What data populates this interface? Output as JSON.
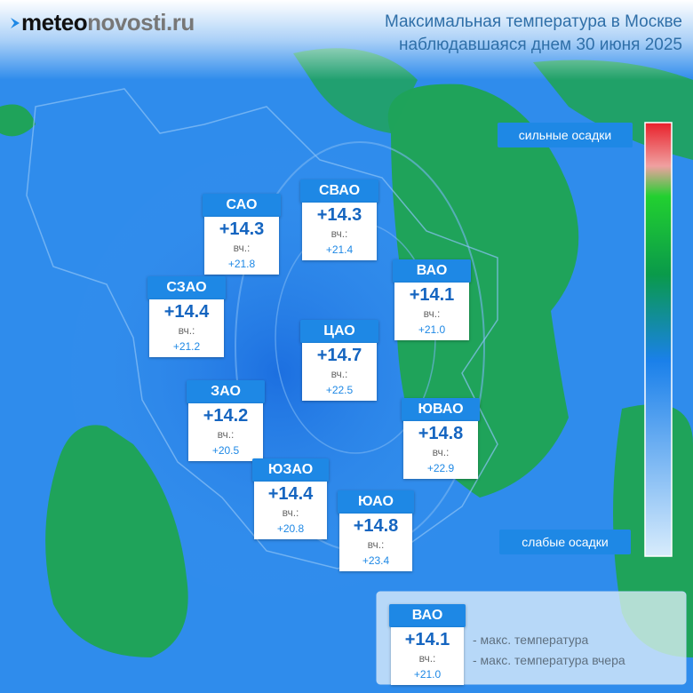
{
  "logo": {
    "bold": "meteo",
    "light": "novosti.ru"
  },
  "title": [
    "Максимальная температура в Москве",
    "наблюдавшаяся днем 30 июня 2025"
  ],
  "legend": {
    "high": "сильные осадки",
    "low": "слабые осадки"
  },
  "districts": [
    {
      "name": "САО",
      "temp": "+14.3",
      "prev_label": "вч.:",
      "prev": "+21.8"
    },
    {
      "name": "СВАО",
      "temp": "+14.3",
      "prev_label": "вч.:",
      "prev": "+21.4"
    },
    {
      "name": "СЗАО",
      "temp": "+14.4",
      "prev_label": "вч.:",
      "prev": "+21.2"
    },
    {
      "name": "ВАО",
      "temp": "+14.1",
      "prev_label": "вч.:",
      "prev": "+21.0"
    },
    {
      "name": "ЦАО",
      "temp": "+14.7",
      "prev_label": "вч.:",
      "prev": "+22.5"
    },
    {
      "name": "ЗАО",
      "temp": "+14.2",
      "prev_label": "вч.:",
      "prev": "+20.5"
    },
    {
      "name": "ЮВАО",
      "temp": "+14.8",
      "prev_label": "вч.:",
      "prev": "+22.9"
    },
    {
      "name": "ЮЗАО",
      "temp": "+14.4",
      "prev_label": "вч.:",
      "prev": "+20.8"
    },
    {
      "name": "ЮАО",
      "temp": "+14.8",
      "prev_label": "вч.:",
      "prev": "+23.4"
    }
  ],
  "key": {
    "name": "ВАО",
    "temp": "+14.1",
    "prev_label": "вч.:",
    "prev": "+21.0",
    "temp_note": "- макс. температура",
    "prev_note": "- макс. температура вчера"
  }
}
